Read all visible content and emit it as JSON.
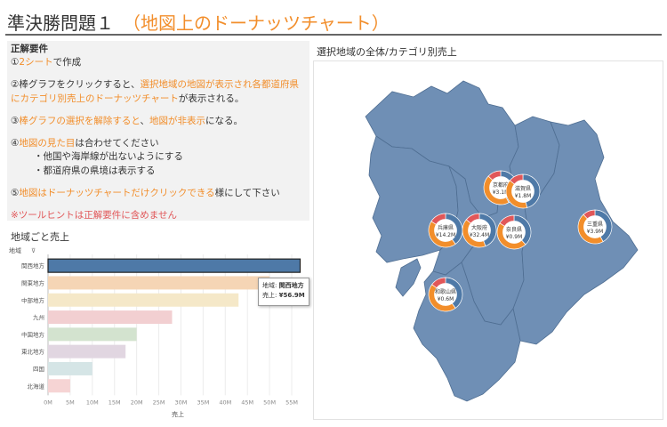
{
  "header": {
    "title": "準決勝問題１",
    "subtitle": "（地図上のドーナッツチャート）"
  },
  "requirements": {
    "heading": "正解要件",
    "r1_prefix": "①",
    "r1_hl": "2シート",
    "r1_rest": "で作成",
    "r2_a": "②棒グラフをクリックすると、",
    "r2_hl": "選択地域の地図が表示され各都道府県にカテゴリ別売上のドーナッツチャート",
    "r2_rest": "が表示される。",
    "r3_prefix": "③",
    "r3_hl": "棒グラフの選択を解除すると",
    "r3_mid": "、",
    "r3_hl2": "地図が非表示",
    "r3_rest": "になる。",
    "r4_prefix": "④",
    "r4_hl": "地図の見た目",
    "r4_rest": "は合わせてください",
    "r4_sub1": "・他国や海岸線が出ないようにする",
    "r4_sub2": "・都道府県の県境は表示する",
    "r5_prefix": "⑤",
    "r5_hl": "地図はドーナッツチャートだけクリックできる",
    "r5_rest": "様にして下さい",
    "note": "※ツールヒントは正解要件に含めません"
  },
  "bar_section": {
    "title": "地域ごと売上",
    "axis_header": "地域",
    "x_axis_title": "売上"
  },
  "tooltip": {
    "label1": "地域:",
    "value1": "関西地方",
    "label2": "売上:",
    "value2": "¥56.9M"
  },
  "map_section": {
    "title": "選択地域の全体/カテゴリ別売上"
  },
  "chart_data": {
    "type": "bar",
    "orientation": "horizontal",
    "categories": [
      "関西地方",
      "関東地方",
      "中部地方",
      "九州",
      "中国地方",
      "東北地方",
      "四国",
      "北海道"
    ],
    "values": [
      56.9,
      50,
      43,
      28,
      20,
      17.5,
      10,
      5
    ],
    "selected": "関西地方",
    "x_ticks": [
      "0M",
      "5M",
      "10M",
      "15M",
      "20M",
      "25M",
      "30M",
      "35M",
      "40M",
      "45M",
      "50M",
      "55M"
    ],
    "xlim": [
      0,
      57
    ],
    "xlabel": "売上",
    "ylabel": "地域",
    "bar_colors": [
      "#4e79a7",
      "#f5d5b5",
      "#f5e8c8",
      "#f2cfd1",
      "#d3e3cf",
      "#e1d6e1",
      "#d5e5e6",
      "#f6d4d4"
    ]
  },
  "map_data": {
    "donuts": [
      {
        "label": "京都府",
        "value": "¥3.1M"
      },
      {
        "label": "滋賀県",
        "value": "¥1.8M"
      },
      {
        "label": "兵庫県",
        "value": "¥14.2M"
      },
      {
        "label": "大阪府",
        "value": "¥32.4M"
      },
      {
        "label": "奈良県",
        "value": "¥0.9M"
      },
      {
        "label": "三重県",
        "value": "¥3.9M"
      },
      {
        "label": "和歌山県",
        "value": "¥0.6M"
      }
    ],
    "map_color": "#6f8fb5",
    "donut_colors": [
      "#4e79a7",
      "#f28e2b",
      "#e15759"
    ]
  }
}
